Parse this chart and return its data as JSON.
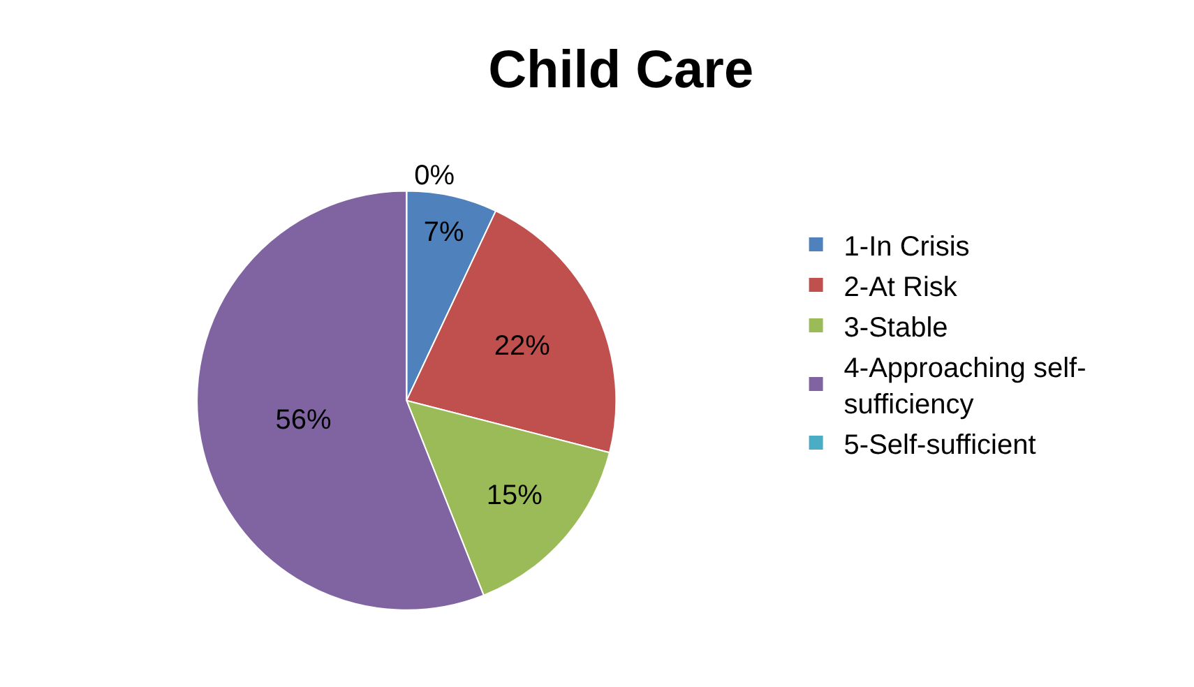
{
  "chart_data": {
    "type": "pie",
    "title": "Child Care",
    "categories": [
      "1-In Crisis",
      "2-At Risk",
      "3-Stable",
      "4-Approaching self-sufficiency",
      "5-Self-sufficient"
    ],
    "values": [
      7,
      22,
      15,
      56,
      0
    ],
    "value_labels": [
      "7%",
      "22%",
      "15%",
      "56%",
      "0%"
    ],
    "colors": [
      "#4f81bd",
      "#c0504d",
      "#9bbb59",
      "#8064a2",
      "#4bacc6"
    ],
    "legend": "right"
  }
}
